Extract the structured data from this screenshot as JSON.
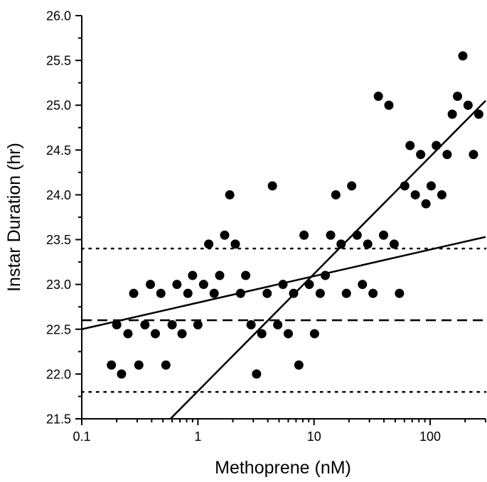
{
  "chart_data": {
    "type": "scatter",
    "title": "",
    "xlabel": "Methoprene (nM)",
    "ylabel": "Instar Duration (hr)",
    "x_scale": "log",
    "xlim": [
      0.1,
      300
    ],
    "ylim": [
      21.5,
      26.0
    ],
    "grid": false,
    "x_ticks": [
      0.1,
      1,
      10,
      100
    ],
    "x_tick_labels": [
      "0.1",
      "1",
      "10",
      "100"
    ],
    "y_ticks": [
      21.5,
      22.0,
      22.5,
      23.0,
      23.5,
      24.0,
      24.5,
      25.0,
      25.5,
      26.0
    ],
    "y_tick_labels": [
      "21.5",
      "22.0",
      "22.5",
      "23.0",
      "23.5",
      "24.0",
      "24.5",
      "25.0",
      "25.5",
      "26.0"
    ],
    "points": [
      [
        0.18,
        22.1
      ],
      [
        0.2,
        22.55
      ],
      [
        0.22,
        22.0
      ],
      [
        0.25,
        22.45
      ],
      [
        0.28,
        22.9
      ],
      [
        0.31,
        22.1
      ],
      [
        0.35,
        22.55
      ],
      [
        0.39,
        23.0
      ],
      [
        0.43,
        22.45
      ],
      [
        0.48,
        22.9
      ],
      [
        0.53,
        22.1
      ],
      [
        0.6,
        22.55
      ],
      [
        0.66,
        23.0
      ],
      [
        0.73,
        22.45
      ],
      [
        0.82,
        22.9
      ],
      [
        0.9,
        23.1
      ],
      [
        1.0,
        22.55
      ],
      [
        1.12,
        23.0
      ],
      [
        1.24,
        23.45
      ],
      [
        1.38,
        22.9
      ],
      [
        1.54,
        23.1
      ],
      [
        1.7,
        23.55
      ],
      [
        1.88,
        24.0
      ],
      [
        2.1,
        23.45
      ],
      [
        2.33,
        22.9
      ],
      [
        2.58,
        23.1
      ],
      [
        2.87,
        22.55
      ],
      [
        3.2,
        22.0
      ],
      [
        3.55,
        22.45
      ],
      [
        3.95,
        22.9
      ],
      [
        4.38,
        24.1
      ],
      [
        4.87,
        22.55
      ],
      [
        5.4,
        23.0
      ],
      [
        6.0,
        22.45
      ],
      [
        6.67,
        22.9
      ],
      [
        7.4,
        22.1
      ],
      [
        8.2,
        23.55
      ],
      [
        9.1,
        23.0
      ],
      [
        10.1,
        22.45
      ],
      [
        11.3,
        22.9
      ],
      [
        12.5,
        23.1
      ],
      [
        13.9,
        23.55
      ],
      [
        15.4,
        24.0
      ],
      [
        17.1,
        23.45
      ],
      [
        19.0,
        22.9
      ],
      [
        21.1,
        24.1
      ],
      [
        23.5,
        23.55
      ],
      [
        26.1,
        23.0
      ],
      [
        29.0,
        23.45
      ],
      [
        32.2,
        22.9
      ],
      [
        35.8,
        25.1
      ],
      [
        39.7,
        23.55
      ],
      [
        44.1,
        25.0
      ],
      [
        49.0,
        23.45
      ],
      [
        54.4,
        22.9
      ],
      [
        60.4,
        24.1
      ],
      [
        67.1,
        24.55
      ],
      [
        74.5,
        24.0
      ],
      [
        82.8,
        24.45
      ],
      [
        92.0,
        23.9
      ],
      [
        102,
        24.1
      ],
      [
        113,
        24.55
      ],
      [
        126,
        24.0
      ],
      [
        140,
        24.45
      ],
      [
        155,
        24.9
      ],
      [
        172,
        25.1
      ],
      [
        191,
        25.55
      ],
      [
        212,
        25.0
      ],
      [
        236,
        24.45
      ],
      [
        262,
        24.9
      ]
    ],
    "fit_lines": [
      {
        "from": [
          0.1,
          22.5
        ],
        "to": [
          300,
          23.53
        ]
      },
      {
        "from": [
          0.58,
          21.5
        ],
        "to": [
          300,
          25.05
        ]
      }
    ],
    "reference_lines": [
      {
        "y": 22.6,
        "style": "dashed"
      },
      {
        "y": 23.4,
        "style": "dotted"
      },
      {
        "y": 21.8,
        "style": "dotted"
      }
    ],
    "colors": {
      "points": "#000000",
      "lines": "#000000",
      "background": "#ffffff"
    }
  }
}
